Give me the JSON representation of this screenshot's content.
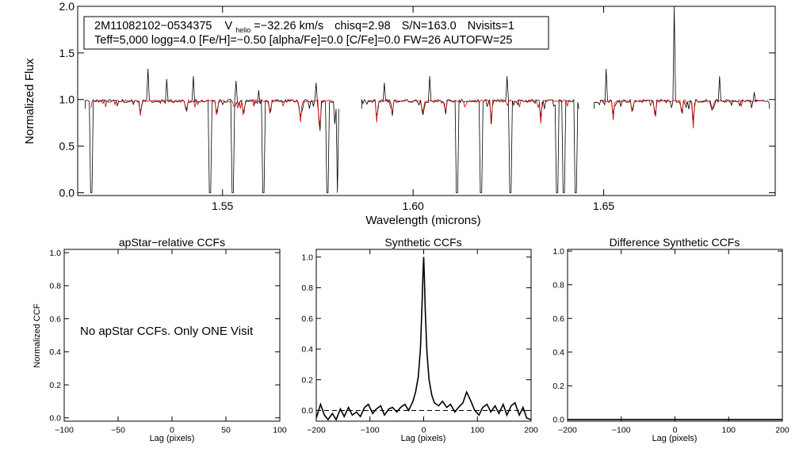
{
  "chart_data": [
    {
      "id": "spectrum",
      "type": "line",
      "xlabel": "Wavelength (microns)",
      "ylabel": "Normalized Flux",
      "xlim": [
        1.512,
        1.695
      ],
      "ylim": [
        -0.03,
        2.0
      ],
      "xticks": [
        1.55,
        1.6,
        1.65
      ],
      "xticklabels": [
        "1.55",
        "1.60",
        "1.65"
      ],
      "yticks": [
        0.0,
        0.5,
        1.0,
        1.5,
        2.0
      ],
      "yticklabels": [
        "0.0",
        "0.5",
        "1.0",
        "1.5",
        "2.0"
      ],
      "info": {
        "star": "2M11082102−0534375",
        "vhelio_prefix": "V",
        "vhelio_sub": "helio",
        "vhelio_value": "=−32.26 km/s",
        "chisq": "chisq=2.98",
        "snr": "S/N=163.0",
        "nvisits": "Nvisits=1",
        "params": "Teff=5,000 logg=4.0 [Fe/H]=−0.50 [alpha/Fe]=0.0 [C/Fe]=0.0 FW=26 AUTOFW=25"
      },
      "segments": [
        [
          1.514,
          1.5805
        ],
        [
          1.5865,
          1.6435
        ],
        [
          1.6475,
          1.6935
        ]
      ],
      "colors": {
        "observed": "#000000",
        "model": "#d40000"
      },
      "spikes_up": [
        [
          1.5305,
          1.33
        ],
        [
          1.5355,
          1.22
        ],
        [
          1.5425,
          1.25
        ],
        [
          1.5535,
          1.2
        ],
        [
          1.5595,
          1.1
        ],
        [
          1.5745,
          1.18
        ],
        [
          1.5925,
          1.18
        ],
        [
          1.6045,
          1.25
        ],
        [
          1.6245,
          1.25
        ],
        [
          1.6505,
          1.33
        ],
        [
          1.6685,
          2.0
        ],
        [
          1.6805,
          1.25
        ],
        [
          1.6895,
          1.08
        ]
      ],
      "deep_drops": [
        [
          1.5155,
          0.0
        ],
        [
          1.5465,
          0.0
        ],
        [
          1.5525,
          0.0
        ],
        [
          1.5605,
          0.0
        ],
        [
          1.5775,
          0.0
        ],
        [
          1.5805,
          0.0
        ],
        [
          1.6115,
          0.0
        ],
        [
          1.6175,
          0.0
        ],
        [
          1.6255,
          0.0
        ],
        [
          1.6375,
          0.0
        ],
        [
          1.6395,
          0.0
        ],
        [
          1.6425,
          0.0
        ]
      ],
      "dips": [
        [
          1.5285,
          0.8
        ],
        [
          1.5405,
          0.83
        ],
        [
          1.5485,
          0.78
        ],
        [
          1.5555,
          0.78
        ],
        [
          1.5625,
          0.8
        ],
        [
          1.5705,
          0.72
        ],
        [
          1.5755,
          0.55
        ],
        [
          1.5795,
          0.7
        ],
        [
          1.5905,
          0.72
        ],
        [
          1.5945,
          0.8
        ],
        [
          1.6025,
          0.78
        ],
        [
          1.6085,
          0.82
        ],
        [
          1.6205,
          0.7
        ],
        [
          1.6335,
          0.74
        ],
        [
          1.6525,
          0.78
        ],
        [
          1.6575,
          0.82
        ],
        [
          1.6635,
          0.76
        ],
        [
          1.6705,
          0.8
        ],
        [
          1.6735,
          0.69
        ],
        [
          1.6785,
          0.84
        ]
      ]
    },
    {
      "id": "apstar",
      "type": "line",
      "title": "apStar−relative CCFs",
      "xlabel": "Lag (pixels)",
      "ylabel": "Normalized CCF",
      "xlim": [
        -100,
        100
      ],
      "ylim": [
        -0.02,
        1.02
      ],
      "xticks": [
        -100,
        -50,
        0,
        50,
        100
      ],
      "xticklabels": [
        "−100",
        "−50",
        "0",
        "50",
        "100"
      ],
      "yticks": [
        0.0,
        0.2,
        0.4,
        0.6,
        0.8,
        1.0
      ],
      "yticklabels": [
        "0.0",
        "0.2",
        "0.4",
        "0.6",
        "0.8",
        "1.0"
      ],
      "message": "No apStar CCFs.  Only ONE Visit",
      "series": []
    },
    {
      "id": "synthetic",
      "type": "line",
      "title": "Synthetic CCFs",
      "xlabel": "Lag (pixels)",
      "xlim": [
        -200,
        200
      ],
      "ylim": [
        -0.07,
        1.05
      ],
      "xticks": [
        -200,
        -100,
        0,
        100,
        200
      ],
      "xticklabels": [
        "−200",
        "−100",
        "0",
        "100",
        "200"
      ],
      "yticks": [
        0.0,
        0.2,
        0.4,
        0.6,
        0.8,
        1.0
      ],
      "yticklabels": [
        "0.0",
        "0.2",
        "0.4",
        "0.6",
        "0.8",
        "1.0"
      ],
      "reference_line": 0.0,
      "series": [
        {
          "name": "CCF",
          "x": [
            -200,
            -192,
            -185,
            -178,
            -170,
            -163,
            -155,
            -148,
            -140,
            -133,
            -125,
            -118,
            -110,
            -103,
            -95,
            -88,
            -80,
            -73,
            -65,
            -58,
            -50,
            -43,
            -35,
            -28,
            -20,
            -15,
            -10,
            -6,
            -3,
            -1,
            0,
            1,
            3,
            6,
            10,
            15,
            20,
            28,
            35,
            43,
            50,
            58,
            65,
            73,
            80,
            88,
            95,
            103,
            110,
            118,
            125,
            133,
            140,
            148,
            155,
            163,
            170,
            178,
            185,
            192,
            200
          ],
          "y": [
            -0.05,
            0.04,
            -0.03,
            -0.06,
            -0.02,
            -0.06,
            0.01,
            -0.04,
            0.02,
            -0.03,
            -0.01,
            -0.04,
            0.02,
            0.04,
            -0.02,
            0.01,
            0.03,
            -0.03,
            0.01,
            0.02,
            -0.01,
            0.02,
            0.04,
            0.0,
            0.06,
            0.12,
            0.22,
            0.4,
            0.7,
            0.92,
            1.0,
            0.9,
            0.65,
            0.38,
            0.2,
            0.1,
            0.05,
            0.03,
            0.06,
            0.02,
            0.04,
            -0.01,
            0.02,
            0.05,
            0.12,
            0.06,
            0.0,
            -0.03,
            0.02,
            0.04,
            -0.01,
            0.03,
            -0.02,
            0.04,
            -0.03,
            0.03,
            0.05,
            -0.03,
            0.02,
            -0.05,
            -0.06
          ]
        }
      ]
    },
    {
      "id": "difference",
      "type": "line",
      "title": "Difference Synthetic CCFs",
      "xlabel": "Lag (pixels)",
      "xlim": [
        -200,
        200
      ],
      "ylim": [
        -0.01,
        1.01
      ],
      "xticks": [
        -200,
        -100,
        0,
        100,
        200
      ],
      "xticklabels": [
        "−200",
        "−100",
        "0",
        "100",
        "200"
      ],
      "yticks": [
        0.0,
        0.2,
        0.4,
        0.6,
        0.8,
        1.0
      ],
      "yticklabels": [
        "0.0",
        "0.2",
        "0.4",
        "0.6",
        "0.8",
        "1.0"
      ],
      "series": [
        {
          "name": "diff",
          "x": [
            -200,
            200
          ],
          "y": [
            0.0,
            0.0
          ]
        }
      ]
    }
  ]
}
